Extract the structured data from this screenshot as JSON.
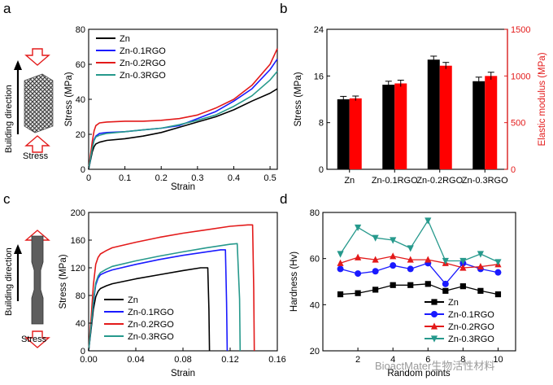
{
  "chart_data": [
    {
      "panel": "a",
      "type": "line",
      "xlabel": "Strain",
      "ylabel": "Stress (MPa)",
      "xlim": [
        0,
        0.52
      ],
      "ylim": [
        0,
        80
      ],
      "xticks": [
        "0",
        "0.1",
        "0.2",
        "0.3",
        "0.4",
        "0.5"
      ],
      "yticks": [
        "0",
        "20",
        "40",
        "60",
        "80"
      ],
      "legend_position": "top-left",
      "series": [
        {
          "name": "Zn",
          "color": "#000000",
          "x": [
            0,
            0.005,
            0.01,
            0.015,
            0.02,
            0.03,
            0.05,
            0.1,
            0.15,
            0.2,
            0.25,
            0.3,
            0.35,
            0.4,
            0.45,
            0.5,
            0.52
          ],
          "y": [
            0,
            5,
            10,
            13,
            14.5,
            15.5,
            16.5,
            17.5,
            19,
            21,
            24,
            27,
            30,
            34,
            39,
            43.5,
            46
          ]
        },
        {
          "name": "Zn-0.1RGO",
          "color": "#1a1aff",
          "x": [
            0,
            0.005,
            0.01,
            0.015,
            0.02,
            0.03,
            0.05,
            0.1,
            0.15,
            0.2,
            0.25,
            0.3,
            0.35,
            0.4,
            0.45,
            0.5,
            0.52
          ],
          "y": [
            0,
            6,
            13,
            17,
            19,
            20.5,
            21,
            21.5,
            22.5,
            23.5,
            25,
            29,
            33,
            39,
            46,
            57,
            63
          ]
        },
        {
          "name": "Zn-0.2RGO",
          "color": "#e31a1a",
          "x": [
            0,
            0.005,
            0.01,
            0.015,
            0.02,
            0.03,
            0.05,
            0.1,
            0.15,
            0.2,
            0.25,
            0.3,
            0.35,
            0.4,
            0.45,
            0.5,
            0.52
          ],
          "y": [
            0,
            8,
            16,
            22,
            25,
            26.5,
            27,
            27.5,
            27.5,
            28,
            29,
            31,
            35,
            40,
            48,
            60,
            69
          ]
        },
        {
          "name": "Zn-0.3RGO",
          "color": "#26998c",
          "x": [
            0,
            0.005,
            0.01,
            0.015,
            0.02,
            0.03,
            0.05,
            0.1,
            0.15,
            0.2,
            0.25,
            0.3,
            0.35,
            0.4,
            0.45,
            0.5,
            0.52
          ],
          "y": [
            0,
            6,
            12,
            16.5,
            18.5,
            19.5,
            20.5,
            21.5,
            22.5,
            23.5,
            25.5,
            28,
            31,
            36,
            42,
            51,
            56
          ]
        }
      ]
    },
    {
      "panel": "b",
      "type": "bar",
      "categories": [
        "Zn",
        "Zn-0.1RGO",
        "Zn-0.2RGO",
        "Zn-0.3RGO"
      ],
      "ylabel": "Stress (MPa)",
      "ylabel_right": "Elastic modulus (MPa)",
      "ylim": [
        0,
        24
      ],
      "ylim_right": [
        0,
        1500
      ],
      "yticks": [
        "0",
        "8",
        "16",
        "24"
      ],
      "yticks_right": [
        "0",
        "500",
        "1000",
        "1500"
      ],
      "series": [
        {
          "name": "Stress",
          "color": "#000000",
          "axis": "left",
          "values": [
            12.0,
            14.5,
            18.8,
            15.1
          ],
          "errors": [
            0.5,
            0.6,
            0.6,
            0.7
          ]
        },
        {
          "name": "Elastic modulus",
          "color": "#ff0000",
          "axis": "right",
          "values": [
            760,
            920,
            1110,
            1000
          ],
          "errors": [
            25,
            35,
            35,
            40
          ]
        }
      ]
    },
    {
      "panel": "c",
      "type": "line",
      "xlabel": "Strain",
      "ylabel": "Stress (MPa)",
      "xlim": [
        0,
        0.16
      ],
      "ylim": [
        0,
        200
      ],
      "xticks": [
        "0.00",
        "0.04",
        "0.08",
        "0.12",
        "0.16"
      ],
      "yticks": [
        "0",
        "40",
        "80",
        "120",
        "160",
        "200"
      ],
      "legend_position": "bottom-left",
      "series": [
        {
          "name": "Zn",
          "color": "#000000",
          "x": [
            0,
            0.002,
            0.004,
            0.006,
            0.008,
            0.01,
            0.015,
            0.02,
            0.04,
            0.06,
            0.08,
            0.095,
            0.101,
            0.102,
            0.1025
          ],
          "y": [
            0,
            30,
            60,
            78,
            86,
            90,
            94,
            97,
            104,
            110,
            116,
            120,
            120,
            60,
            0
          ]
        },
        {
          "name": "Zn-0.1RGO",
          "color": "#1a1aff",
          "x": [
            0,
            0.002,
            0.004,
            0.006,
            0.008,
            0.01,
            0.015,
            0.02,
            0.04,
            0.06,
            0.08,
            0.1,
            0.112,
            0.116,
            0.117,
            0.1175
          ],
          "y": [
            0,
            35,
            70,
            95,
            105,
            110,
            114,
            117,
            125,
            132,
            138,
            143,
            146,
            146,
            70,
            0
          ]
        },
        {
          "name": "Zn-0.2RGO",
          "color": "#e31a1a",
          "x": [
            0,
            0.002,
            0.004,
            0.006,
            0.008,
            0.01,
            0.015,
            0.02,
            0.04,
            0.06,
            0.08,
            0.1,
            0.12,
            0.135,
            0.139,
            0.14,
            0.1405
          ],
          "y": [
            0,
            45,
            95,
            125,
            135,
            140,
            145,
            149,
            157,
            164,
            170,
            175,
            180,
            182,
            182,
            90,
            0
          ]
        },
        {
          "name": "Zn-0.3RGO",
          "color": "#26998c",
          "x": [
            0,
            0.002,
            0.004,
            0.006,
            0.008,
            0.01,
            0.015,
            0.02,
            0.04,
            0.06,
            0.08,
            0.1,
            0.12,
            0.126,
            0.128,
            0.1285
          ],
          "y": [
            0,
            35,
            72,
            98,
            108,
            113,
            118,
            122,
            130,
            137,
            143,
            149,
            154,
            155,
            75,
            0
          ]
        }
      ]
    },
    {
      "panel": "d",
      "type": "line",
      "xlabel": "Random points",
      "ylabel": "Hardness (Hv)",
      "xlim": [
        0,
        11
      ],
      "ylim": [
        20,
        80
      ],
      "xticks": [
        "2",
        "4",
        "6",
        "8",
        "10"
      ],
      "yticks": [
        "20",
        "40",
        "60",
        "80"
      ],
      "legend_position": "bottom-center",
      "series": [
        {
          "name": "Zn",
          "color": "#000000",
          "marker": "square",
          "x": [
            1,
            2,
            3,
            4,
            5,
            6,
            7,
            8,
            9,
            10
          ],
          "y": [
            44.5,
            45,
            46.5,
            48.5,
            48.5,
            49,
            46,
            48,
            46,
            44.5
          ]
        },
        {
          "name": "Zn-0.1RGO",
          "color": "#1a1aff",
          "marker": "circle",
          "x": [
            1,
            2,
            3,
            4,
            5,
            6,
            7,
            8,
            9,
            10
          ],
          "y": [
            55.5,
            53.5,
            54.5,
            57,
            55.5,
            58,
            49,
            58,
            55.5,
            54
          ]
        },
        {
          "name": "Zn-0.2RGO",
          "color": "#e31a1a",
          "marker": "triangle-up",
          "x": [
            1,
            2,
            3,
            4,
            5,
            6,
            7,
            8,
            9,
            10
          ],
          "y": [
            58,
            60.5,
            59.5,
            61,
            59.5,
            59.5,
            58,
            56,
            56.5,
            57.5
          ]
        },
        {
          "name": "Zn-0.3RGO",
          "color": "#26998c",
          "marker": "triangle-down",
          "x": [
            1,
            2,
            3,
            4,
            5,
            6,
            7,
            8,
            9,
            10
          ],
          "y": [
            62,
            73.5,
            69,
            68,
            64.5,
            76.5,
            59,
            59,
            62,
            58.5
          ]
        }
      ]
    }
  ],
  "panels": {
    "a": "a",
    "b": "b",
    "c": "c",
    "d": "d"
  },
  "side_labels": {
    "a_direction": "Building direction",
    "a_stress": "Stress",
    "c_direction": "Building direction",
    "c_stress": "Stress"
  },
  "watermark": "BioactMater生物活性材料"
}
